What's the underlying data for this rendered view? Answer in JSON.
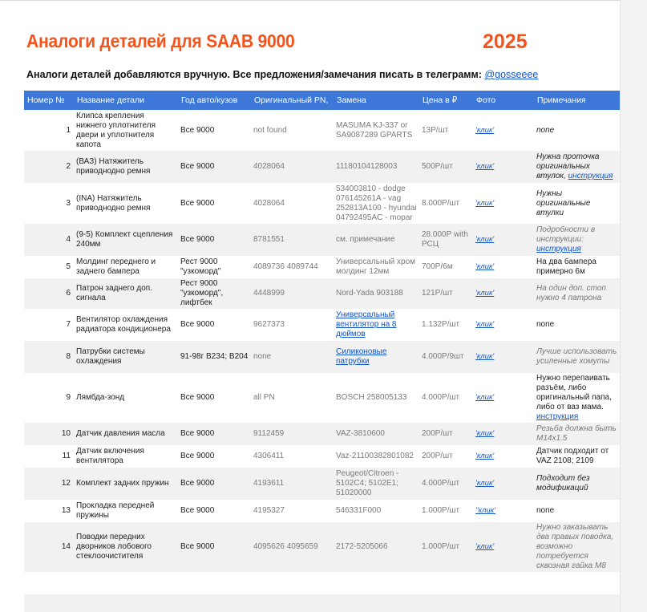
{
  "header": {
    "title": "Аналоги деталей для SAAB 9000",
    "year": "2025",
    "subtitle": "Аналоги деталей добавляются вручную. Все предложения/замечания писать в телеграмм:",
    "telegram": "@gosseeee"
  },
  "table": {
    "columns": [
      "Номер №",
      "Название детали",
      "Год авто/кузов",
      "Оригинальный PN,",
      "Замена",
      "Цена в ₽",
      "Фото",
      "Примечания"
    ],
    "rows": [
      {
        "num": "1",
        "name": "Клипса крепления нижнего уплотнителя двери и уплотнителя капота",
        "year": "Все 9000",
        "pn": "not found",
        "replacement": "MASUMA KJ-337 or SA9087289 GPARTS",
        "price": "13Р/шт",
        "photo": "'клик'",
        "note": "none",
        "note_style": "italic"
      },
      {
        "num": "2",
        "name": "(ВАЗ) Натяжитель приводнодно ремня",
        "year": "Все 9000",
        "pn": "4028064",
        "replacement": "11180104128003",
        "price": "500Р/шт",
        "photo": "'клик'",
        "note": "Нужна проточка оригинальных втулок,",
        "note_link": "инструкция",
        "note_style": "italic"
      },
      {
        "num": "3",
        "name": "(INA) Натяжитель приводнодно ремня",
        "year": "Все 9000",
        "pn": "4028064",
        "replacement": "534003810 - dodge 076145261A - vag 252813A100 - hyundai 04792495AC - mopar",
        "price": "8.000Р/шт",
        "photo": "'клик'",
        "note": "Нужны оригинальные втулки",
        "note_style": "italic"
      },
      {
        "num": "4",
        "name": "(9-5) Комплект сцепления 240мм",
        "year": "Все 9000",
        "pn": "8781551",
        "replacement": "см. примечание",
        "price": "28.000Р with РСЦ",
        "photo": "'клик'",
        "note": "Подробности в инструкции:",
        "note_link": "инструкция",
        "note_style": "muted"
      },
      {
        "num": "5",
        "name": "Молдинг переднего и заднего бампера",
        "year": "Рест 9000 \"узкоморд\"",
        "pn": "4089736 4089744",
        "replacement": "Универсальный хром молдинг 12мм",
        "price": "700Р/6м",
        "photo": "'клик'",
        "note": "На два бампера примерно 6м",
        "note_style": "plain"
      },
      {
        "num": "6",
        "name": "Патрон заднего доп. сигнала",
        "year": "Рест 9000 \"узкоморд\", лифтбек",
        "pn": "4448999",
        "replacement": "Nord-Yada 903188",
        "price": "121Р/шт",
        "photo": "'клик'",
        "note": "На один доп. стоп нужно 4 патрона",
        "note_style": "muted"
      },
      {
        "num": "7",
        "name": "Вентилятор охлаждения радиатора кондиционера",
        "year": "Все 9000",
        "pn": "9627373",
        "replacement": "Универсальный вентилятор на 8 дюймов",
        "replacement_link": true,
        "price": "1.132Р/шт",
        "photo": "'клик'",
        "note": "none",
        "note_style": "plain"
      },
      {
        "num": "8",
        "name": "Патрубки системы охлаждения",
        "year": "91-98г B234; B204",
        "pn": "none",
        "replacement": "Силиконовые патрубки",
        "replacement_link": true,
        "price": "4.000Р/9шт",
        "photo": "'клик'",
        "note": "Лучше использовать усиленные хомуты",
        "note_style": "muted"
      },
      {
        "num": "9",
        "name": "Лямбда-зонд",
        "year": "Все 9000",
        "pn": "all PN",
        "replacement": "BOSCH 258005133",
        "price": "4.000Р/шт",
        "photo": "'клик'",
        "note": "Нужно перепаивать разъём, либо оригинальный папа, либо от ваз мама.",
        "note_link": "инструкция",
        "note_style": "plain"
      },
      {
        "num": "10",
        "name": "Датчик давления масла",
        "year": "Все 9000",
        "pn": "9112459",
        "replacement": "VAZ-3810600",
        "price": "200Р/шт",
        "photo": "'клик'",
        "note": "Резьба должна быть M14x1.5",
        "note_style": "muted"
      },
      {
        "num": "11",
        "name": "Датчик включения вентилятора",
        "year": "Все 9000",
        "pn": "4306411",
        "replacement": "Vaz-21100382801082",
        "price": "200Р/шт",
        "photo": "'клик'",
        "note": "Датчик подходит от VAZ 2108; 2109",
        "note_style": "plain"
      },
      {
        "num": "12",
        "name": "Комплект задних пружин",
        "year": "Все 9000",
        "pn": "4193611",
        "replacement": "Peugeot/Citroen - 5102C4; 5102E1; 51020000",
        "price": "4.000Р/шт",
        "photo": "'клик'",
        "note": "Подходит без модификаций",
        "note_style": "italic"
      },
      {
        "num": "13",
        "name": "Прокладка передней пружины",
        "year": "Все 9000",
        "pn": "4195327",
        "replacement": "546331F000",
        "price": "1.000Р/шт",
        "photo": "''клик'",
        "note": "none",
        "note_style": "plain"
      },
      {
        "num": "14",
        "name": "Поводки передних дворников лобового стеклоочистителя",
        "year": "Все 9000",
        "pn": "4095626 4095659",
        "replacement": "2172-5205066",
        "price": "1.000Р/шт",
        "photo": "'клик'",
        "note": "Нужно заказывать два правых поводка, возможно потребуется сквозная гайка M8",
        "note_style": "muted"
      }
    ]
  }
}
